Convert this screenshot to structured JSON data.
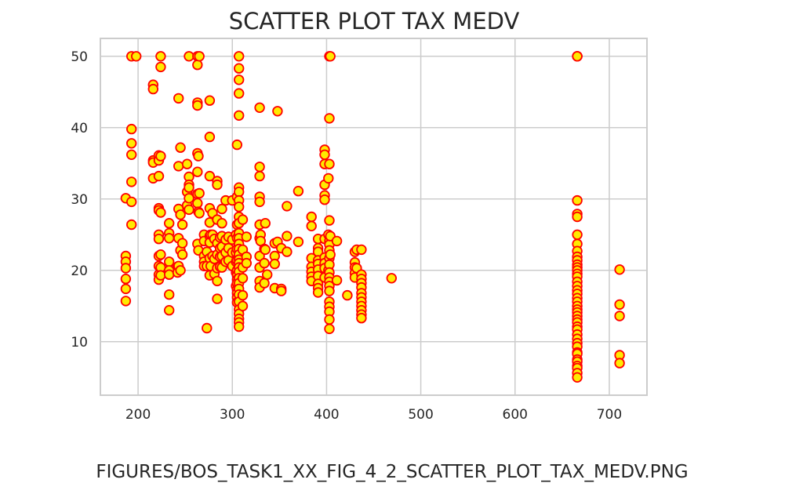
{
  "chart_data": {
    "type": "scatter",
    "title": "SCATTER PLOT TAX MEDV",
    "xlabel": "",
    "ylabel": "",
    "xlim": [
      160,
      740
    ],
    "ylim": [
      2.5,
      52.5
    ],
    "xticks": [
      "200",
      "300",
      "400",
      "500",
      "600",
      "700"
    ],
    "yticks": [
      "10",
      "20",
      "30",
      "40",
      "50"
    ],
    "grid": true,
    "marker_fill": "#ffea00",
    "marker_edge": "#ff0000",
    "points": [
      [
        187,
        30.1
      ],
      [
        187,
        22.0
      ],
      [
        187,
        21.2
      ],
      [
        187,
        20.3
      ],
      [
        187,
        18.8
      ],
      [
        187,
        17.4
      ],
      [
        187,
        15.7
      ],
      [
        193,
        50.0
      ],
      [
        193,
        39.8
      ],
      [
        193,
        37.8
      ],
      [
        193,
        36.2
      ],
      [
        193,
        32.4
      ],
      [
        193,
        29.6
      ],
      [
        193,
        26.4
      ],
      [
        198,
        50.0
      ],
      [
        216,
        46.0
      ],
      [
        216,
        45.4
      ],
      [
        216,
        35.4
      ],
      [
        216,
        35.1
      ],
      [
        216,
        32.9
      ],
      [
        222,
        36.1
      ],
      [
        222,
        35.4
      ],
      [
        222,
        33.2
      ],
      [
        222,
        28.7
      ],
      [
        222,
        28.4
      ],
      [
        222,
        25.0
      ],
      [
        222,
        24.4
      ],
      [
        222,
        22.0
      ],
      [
        222,
        20.6
      ],
      [
        222,
        19.4
      ],
      [
        222,
        18.7
      ],
      [
        224,
        50.0
      ],
      [
        224,
        48.5
      ],
      [
        224,
        36.0
      ],
      [
        224,
        28.1
      ],
      [
        224,
        22.2
      ],
      [
        224,
        20.4
      ],
      [
        224,
        19.3
      ],
      [
        233,
        26.6
      ],
      [
        233,
        25.2
      ],
      [
        233,
        24.5
      ],
      [
        233,
        21.2
      ],
      [
        233,
        20.0
      ],
      [
        233,
        19.4
      ],
      [
        233,
        16.6
      ],
      [
        233,
        14.4
      ],
      [
        242,
        20.5
      ],
      [
        242,
        19.7
      ],
      [
        243,
        44.1
      ],
      [
        243,
        34.6
      ],
      [
        243,
        28.6
      ],
      [
        243,
        24.5
      ],
      [
        243,
        20.6
      ],
      [
        245,
        37.2
      ],
      [
        245,
        27.8
      ],
      [
        245,
        22.8
      ],
      [
        245,
        20.0
      ],
      [
        247,
        26.4
      ],
      [
        247,
        23.8
      ],
      [
        247,
        22.2
      ],
      [
        252,
        34.9
      ],
      [
        252,
        31.0
      ],
      [
        252,
        29.1
      ],
      [
        254,
        50.0
      ],
      [
        254,
        33.1
      ],
      [
        254,
        32.0
      ],
      [
        254,
        31.6
      ],
      [
        254,
        30.1
      ],
      [
        254,
        28.5
      ],
      [
        263,
        50.0
      ],
      [
        263,
        48.8
      ],
      [
        263,
        43.5
      ],
      [
        263,
        43.1
      ],
      [
        263,
        36.4
      ],
      [
        263,
        33.8
      ],
      [
        263,
        30.7
      ],
      [
        263,
        29.4
      ],
      [
        263,
        23.7
      ],
      [
        264,
        36.0
      ],
      [
        264,
        28.2
      ],
      [
        264,
        22.8
      ],
      [
        265,
        50.0
      ],
      [
        265,
        30.8
      ],
      [
        265,
        28.0
      ],
      [
        270,
        25.0
      ],
      [
        270,
        24.1
      ],
      [
        270,
        22.0
      ],
      [
        270,
        21.2
      ],
      [
        270,
        20.6
      ],
      [
        273,
        22.6
      ],
      [
        273,
        20.6
      ],
      [
        273,
        11.9
      ],
      [
        276,
        43.8
      ],
      [
        276,
        38.7
      ],
      [
        276,
        33.2
      ],
      [
        276,
        28.7
      ],
      [
        276,
        26.7
      ],
      [
        276,
        24.8
      ],
      [
        276,
        23.9
      ],
      [
        276,
        21.7
      ],
      [
        276,
        19.3
      ],
      [
        277,
        25.0
      ],
      [
        277,
        20.6
      ],
      [
        279,
        28.0
      ],
      [
        279,
        25.0
      ],
      [
        279,
        22.0
      ],
      [
        281,
        24.4
      ],
      [
        281,
        21.6
      ],
      [
        281,
        19.5
      ],
      [
        284,
        32.5
      ],
      [
        284,
        32.0
      ],
      [
        284,
        27.1
      ],
      [
        284,
        23.8
      ],
      [
        284,
        22.2
      ],
      [
        284,
        20.3
      ],
      [
        284,
        18.5
      ],
      [
        284,
        16.0
      ],
      [
        287,
        24.6
      ],
      [
        287,
        23.1
      ],
      [
        287,
        21.9
      ],
      [
        287,
        20.5
      ],
      [
        289,
        28.6
      ],
      [
        289,
        26.6
      ],
      [
        289,
        24.8
      ],
      [
        289,
        23.3
      ],
      [
        289,
        22.0
      ],
      [
        289,
        20.4
      ],
      [
        293,
        29.8
      ],
      [
        293,
        24.3
      ],
      [
        293,
        22.5
      ],
      [
        293,
        21.2
      ],
      [
        296,
        24.7
      ],
      [
        296,
        23.1
      ],
      [
        296,
        21.4
      ],
      [
        300,
        29.8
      ],
      [
        300,
        24.3
      ],
      [
        300,
        22.5
      ],
      [
        300,
        20.6
      ],
      [
        304,
        25.0
      ],
      [
        304,
        22.5
      ],
      [
        304,
        21.2
      ],
      [
        304,
        19.7
      ],
      [
        304,
        17.8
      ],
      [
        305,
        37.6
      ],
      [
        305,
        30.3
      ],
      [
        305,
        26.4
      ],
      [
        305,
        24.5
      ],
      [
        305,
        23.0
      ],
      [
        305,
        21.4
      ],
      [
        305,
        20.0
      ],
      [
        305,
        19.3
      ],
      [
        305,
        18.7
      ],
      [
        305,
        18.2
      ],
      [
        305,
        17.3
      ],
      [
        305,
        16.8
      ],
      [
        305,
        16.2
      ],
      [
        305,
        15.5
      ],
      [
        307,
        50.0
      ],
      [
        307,
        48.3
      ],
      [
        307,
        46.7
      ],
      [
        307,
        44.8
      ],
      [
        307,
        41.7
      ],
      [
        307,
        31.6
      ],
      [
        307,
        31.0
      ],
      [
        307,
        29.8
      ],
      [
        307,
        28.9
      ],
      [
        307,
        27.5
      ],
      [
        307,
        26.6
      ],
      [
        307,
        25.2
      ],
      [
        307,
        24.5
      ],
      [
        307,
        23.7
      ],
      [
        307,
        23.0
      ],
      [
        307,
        22.2
      ],
      [
        307,
        21.5
      ],
      [
        307,
        21.0
      ],
      [
        307,
        20.4
      ],
      [
        307,
        19.8
      ],
      [
        307,
        18.9
      ],
      [
        307,
        18.2
      ],
      [
        307,
        17.4
      ],
      [
        307,
        16.6
      ],
      [
        307,
        15.6
      ],
      [
        307,
        14.5
      ],
      [
        307,
        13.9
      ],
      [
        307,
        13.2
      ],
      [
        307,
        12.7
      ],
      [
        307,
        12.1
      ],
      [
        311,
        27.1
      ],
      [
        311,
        22.9
      ],
      [
        311,
        20.4
      ],
      [
        311,
        18.9
      ],
      [
        311,
        16.5
      ],
      [
        311,
        15.0
      ],
      [
        315,
        24.7
      ],
      [
        315,
        21.9
      ],
      [
        315,
        21.0
      ],
      [
        329,
        42.8
      ],
      [
        329,
        34.5
      ],
      [
        329,
        33.2
      ],
      [
        329,
        30.3
      ],
      [
        329,
        29.6
      ],
      [
        329,
        26.4
      ],
      [
        329,
        24.5
      ],
      [
        329,
        22.0
      ],
      [
        329,
        20.4
      ],
      [
        329,
        18.5
      ],
      [
        329,
        17.6
      ],
      [
        330,
        25.0
      ],
      [
        330,
        24.1
      ],
      [
        334,
        23.0
      ],
      [
        334,
        21.0
      ],
      [
        334,
        18.2
      ],
      [
        335,
        26.6
      ],
      [
        335,
        22.9
      ],
      [
        337,
        19.4
      ],
      [
        345,
        23.8
      ],
      [
        345,
        22.0
      ],
      [
        345,
        20.9
      ],
      [
        345,
        17.5
      ],
      [
        348,
        42.3
      ],
      [
        348,
        24.0
      ],
      [
        352,
        23.1
      ],
      [
        352,
        17.4
      ],
      [
        352,
        17.1
      ],
      [
        358,
        29.0
      ],
      [
        358,
        24.8
      ],
      [
        358,
        22.6
      ],
      [
        370,
        31.1
      ],
      [
        370,
        24.0
      ],
      [
        384,
        27.5
      ],
      [
        384,
        26.2
      ],
      [
        384,
        21.7
      ],
      [
        384,
        20.5
      ],
      [
        384,
        19.8
      ],
      [
        384,
        19.1
      ],
      [
        384,
        18.5
      ],
      [
        391,
        24.4
      ],
      [
        391,
        23.1
      ],
      [
        391,
        22.6
      ],
      [
        391,
        21.4
      ],
      [
        391,
        20.9
      ],
      [
        391,
        20.1
      ],
      [
        391,
        19.2
      ],
      [
        391,
        18.1
      ],
      [
        391,
        17.5
      ],
      [
        391,
        16.9
      ],
      [
        398,
        36.9
      ],
      [
        398,
        36.2
      ],
      [
        398,
        34.9
      ],
      [
        398,
        32.0
      ],
      [
        398,
        30.5
      ],
      [
        398,
        29.9
      ],
      [
        398,
        24.4
      ],
      [
        398,
        21.8
      ],
      [
        398,
        21.0
      ],
      [
        398,
        20.3
      ],
      [
        398,
        19.0
      ],
      [
        402,
        32.9
      ],
      [
        402,
        25.0
      ],
      [
        402,
        20.0
      ],
      [
        403,
        50.0
      ],
      [
        403,
        41.3
      ],
      [
        403,
        34.9
      ],
      [
        403,
        27.0
      ],
      [
        403,
        24.1
      ],
      [
        403,
        23.6
      ],
      [
        403,
        22.8
      ],
      [
        403,
        21.7
      ],
      [
        403,
        20.8
      ],
      [
        403,
        19.7
      ],
      [
        403,
        19.0
      ],
      [
        403,
        18.4
      ],
      [
        403,
        17.8
      ],
      [
        403,
        17.1
      ],
      [
        403,
        15.6
      ],
      [
        403,
        14.9
      ],
      [
        403,
        14.2
      ],
      [
        403,
        13.1
      ],
      [
        403,
        11.8
      ],
      [
        404,
        50.0
      ],
      [
        404,
        24.8
      ],
      [
        404,
        22.2
      ],
      [
        411,
        24.1
      ],
      [
        411,
        18.6
      ],
      [
        422,
        16.5
      ],
      [
        430,
        22.6
      ],
      [
        430,
        21.1
      ],
      [
        430,
        20.4
      ],
      [
        430,
        19.6
      ],
      [
        430,
        19.0
      ],
      [
        432,
        22.9
      ],
      [
        432,
        20.3
      ],
      [
        437,
        22.9
      ],
      [
        437,
        19.4
      ],
      [
        437,
        18.8
      ],
      [
        437,
        18.2
      ],
      [
        437,
        17.6
      ],
      [
        437,
        16.8
      ],
      [
        437,
        16.2
      ],
      [
        437,
        15.6
      ],
      [
        437,
        15.0
      ],
      [
        437,
        14.4
      ],
      [
        437,
        13.8
      ],
      [
        437,
        13.3
      ],
      [
        469,
        18.9
      ],
      [
        666,
        50.0
      ],
      [
        666,
        50.0
      ],
      [
        666,
        50.0
      ],
      [
        666,
        29.8
      ],
      [
        666,
        27.9
      ],
      [
        666,
        27.5
      ],
      [
        666,
        25.0
      ],
      [
        666,
        23.7
      ],
      [
        666,
        22.7
      ],
      [
        666,
        21.9
      ],
      [
        666,
        21.4
      ],
      [
        666,
        20.8
      ],
      [
        666,
        20.4
      ],
      [
        666,
        20.0
      ],
      [
        666,
        19.5
      ],
      [
        666,
        19.1
      ],
      [
        666,
        18.4
      ],
      [
        666,
        17.8
      ],
      [
        666,
        17.2
      ],
      [
        666,
        16.7
      ],
      [
        666,
        16.1
      ],
      [
        666,
        15.6
      ],
      [
        666,
        15.0
      ],
      [
        666,
        14.5
      ],
      [
        666,
        14.1
      ],
      [
        666,
        13.6
      ],
      [
        666,
        13.1
      ],
      [
        666,
        12.7
      ],
      [
        666,
        12.1
      ],
      [
        666,
        11.7
      ],
      [
        666,
        11.0
      ],
      [
        666,
        10.4
      ],
      [
        666,
        9.8
      ],
      [
        666,
        9.3
      ],
      [
        666,
        8.5
      ],
      [
        666,
        8.3
      ],
      [
        666,
        7.5
      ],
      [
        666,
        7.2
      ],
      [
        666,
        6.6
      ],
      [
        666,
        6.3
      ],
      [
        666,
        5.6
      ],
      [
        666,
        5.0
      ],
      [
        711,
        20.1
      ],
      [
        711,
        15.2
      ],
      [
        711,
        13.6
      ],
      [
        711,
        8.1
      ],
      [
        711,
        7.0
      ]
    ]
  },
  "caption": "FIGURES/BOS_TASK1_XX_FIG_4_2_SCATTER_PLOT_TAX_MEDV.PNG"
}
